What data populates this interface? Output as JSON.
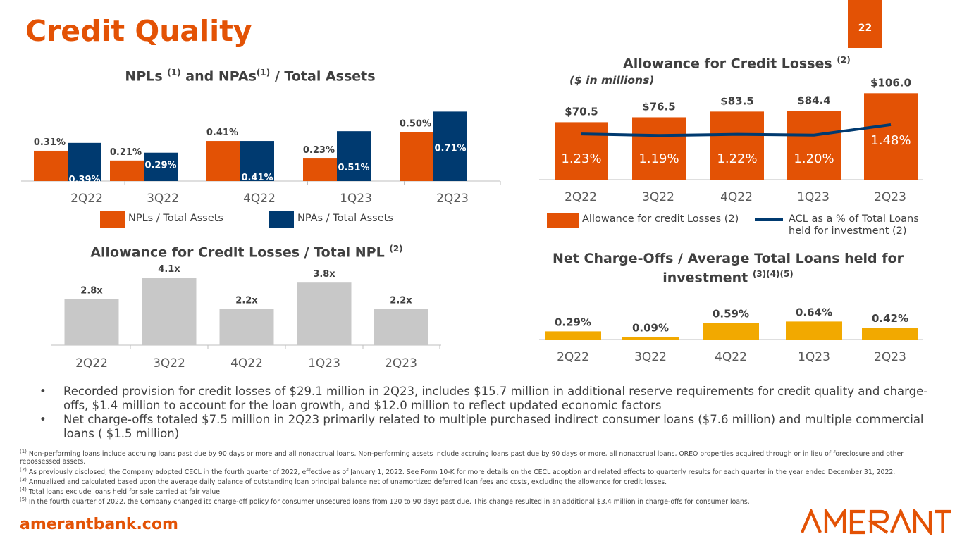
{
  "slide": {
    "title": "Credit Quality",
    "page_number": "22",
    "website": "amerantbank.com",
    "logo_text": "AMERANT",
    "brand_colors": {
      "orange": "#e35205",
      "navy": "#003a70",
      "gray": "#c8c8c8",
      "gold": "#f2a900"
    }
  },
  "npl_chart": {
    "title": "NPLs",
    "title_sup1": "(1)",
    "title_mid": "and NPAs",
    "title_sup2": "(1)",
    "title_end": "/ Total Assets",
    "legend_npl": "NPLs / Total Assets",
    "legend_npa": "NPAs / Total Assets"
  },
  "acl_chart": {
    "title": "Allowance for Credit Losses",
    "title_sup": "(2)",
    "subtitle": "($ in millions)",
    "legend_bar": "Allowance for credit Losses (2)",
    "legend_line_1": "ACL as a % of Total Loans",
    "legend_line_2": "held for investment (2)"
  },
  "ratio_chart": {
    "title": "Allowance for Credit Losses / Total NPL",
    "title_sup": "(2)"
  },
  "nco_chart": {
    "title_line1": "Net Charge-Offs / Average Total Loans held for",
    "title_line2": "investment",
    "title_sup": "(3)(4)(5)"
  },
  "chart_data": [
    {
      "type": "bar",
      "id": "npl_npa",
      "title": "NPLs (1) and NPAs(1) / Total Assets",
      "categories": [
        "2Q22",
        "3Q22",
        "4Q22",
        "1Q23",
        "2Q23"
      ],
      "series": [
        {
          "name": "NPLs / Total Assets",
          "values": [
            0.31,
            0.21,
            0.41,
            0.23,
            0.5
          ],
          "labels": [
            "0.31%",
            "0.21%",
            "0.41%",
            "0.23%",
            "0.50%"
          ],
          "color": "#e35205"
        },
        {
          "name": "NPAs / Total Assets",
          "values": [
            0.39,
            0.29,
            0.41,
            0.51,
            0.71
          ],
          "labels": [
            "0.39%",
            "0.29%",
            "0.41%",
            "0.51%",
            "0.71%"
          ],
          "color": "#003a70"
        }
      ],
      "ylim": [
        0,
        0.72
      ]
    },
    {
      "type": "bar",
      "id": "acl",
      "title": "Allowance for Credit Losses (2)",
      "categories": [
        "2Q22",
        "3Q22",
        "4Q22",
        "1Q23",
        "2Q23"
      ],
      "series": [
        {
          "name": "Allowance for credit Losses (2)",
          "values": [
            70.5,
            76.5,
            83.5,
            84.4,
            106.0
          ],
          "labels": [
            "$70.5",
            "$76.5",
            "$83.5",
            "$84.4",
            "$106.0"
          ],
          "color": "#e35205"
        },
        {
          "name": "ACL as a % of Total Loans held for investment (2)",
          "type": "line",
          "values": [
            1.23,
            1.19,
            1.22,
            1.2,
            1.48
          ],
          "labels": [
            "1.23%",
            "1.19%",
            "1.22%",
            "1.20%",
            "1.48%"
          ],
          "color": "#003a70",
          "ylim": [
            0,
            2.37
          ]
        }
      ],
      "ylim": [
        0,
        108
      ]
    },
    {
      "type": "bar",
      "id": "acl_npl",
      "title": "Allowance for Credit Losses / Total NPL (2)",
      "categories": [
        "2Q22",
        "3Q22",
        "4Q22",
        "1Q23",
        "2Q23"
      ],
      "values": [
        2.8,
        4.1,
        2.2,
        3.8,
        2.2
      ],
      "labels": [
        "2.8x",
        "4.1x",
        "2.2x",
        "3.8x",
        "2.2x"
      ],
      "color": "#c8c8c8",
      "ylim": [
        0,
        4.15
      ]
    },
    {
      "type": "bar",
      "id": "nco",
      "title": "Net Charge-Offs / Average Total Loans held for investment (3)(4)(5)",
      "categories": [
        "2Q22",
        "3Q22",
        "4Q22",
        "1Q23",
        "2Q23"
      ],
      "values": [
        0.29,
        0.09,
        0.59,
        0.64,
        0.42
      ],
      "labels": [
        "0.29%",
        "0.09%",
        "0.59%",
        "0.64%",
        "0.42%"
      ],
      "color": "#f2a900",
      "ylim": [
        0,
        2.0
      ]
    }
  ],
  "bullets": [
    "Recorded provision for credit losses of $29.1 million in 2Q23, includes $15.7 million in additional reserve requirements for credit quality and charge-offs, $1.4 million to account for the loan growth, and $12.0 million to reflect updated economic factors",
    "Net charge-offs totaled $7.5 million in 2Q23 primarily related to multiple purchased indirect consumer loans ($7.6 million) and multiple commercial loans ( $1.5 million)"
  ],
  "footnotes": [
    {
      "num": "(1)",
      "text": " Non-performing loans include accruing loans past due by 90 days or more and all nonaccrual loans. Non-performing assets include accruing loans past due by 90 days or more, all nonaccrual loans, OREO properties acquired through or in lieu of foreclosure and other repossessed assets."
    },
    {
      "num": "(2)",
      "text": "  As previously disclosed, the Company adopted CECL in the fourth quarter of 2022, effective as of January 1, 2022. See Form 10-K for more details on the CECL adoption and related effects to quarterly results for each quarter in the year ended December 31, 2022."
    },
    {
      "num": "(3)",
      "text": " Annualized and calculated based upon the average daily balance of outstanding loan principal balance net of unamortized deferred loan fees and costs, excluding the allowance for credit losses."
    },
    {
      "num": "(4)",
      "text": " Total loans exclude loans held for sale carried at fair value"
    },
    {
      "num": "(5)",
      "text": " In the fourth quarter of 2022, the Company changed its charge-off policy for consumer unsecured loans from 120 to 90 days past due. This change resulted in an additional $3.4 million in charge-offs for consumer loans."
    }
  ]
}
